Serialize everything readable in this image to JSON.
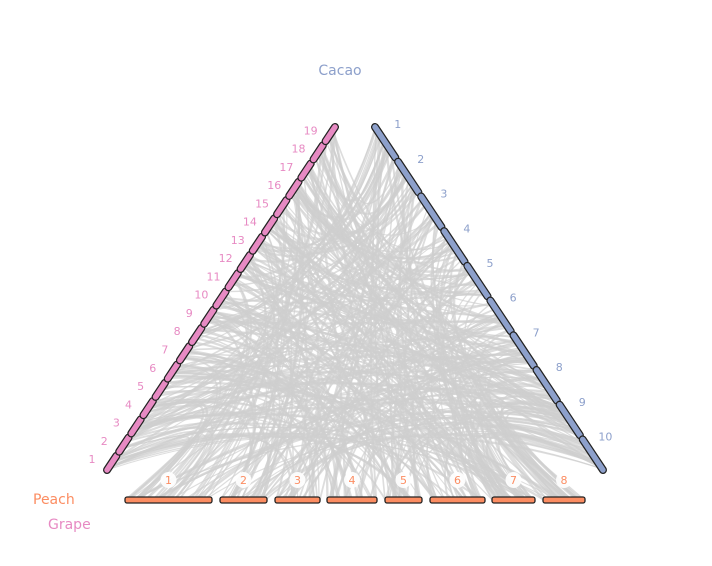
{
  "genomes": [
    {
      "name": "Cacao",
      "color": "#8da0cb",
      "chromosomes": [
        "1",
        "2",
        "3",
        "4",
        "5",
        "6",
        "7",
        "8",
        "9",
        "10"
      ]
    },
    {
      "name": "Peach",
      "color": "#fc8d62",
      "chromosomes": [
        "1",
        "2",
        "3",
        "4",
        "5",
        "6",
        "7",
        "8"
      ]
    },
    {
      "name": "Grape",
      "color": "#e78ac3",
      "chromosomes": [
        "1",
        "2",
        "3",
        "4",
        "5",
        "6",
        "7",
        "8",
        "9",
        "10",
        "11",
        "12",
        "13",
        "14",
        "15",
        "16",
        "17",
        "18",
        "19"
      ]
    }
  ]
}
